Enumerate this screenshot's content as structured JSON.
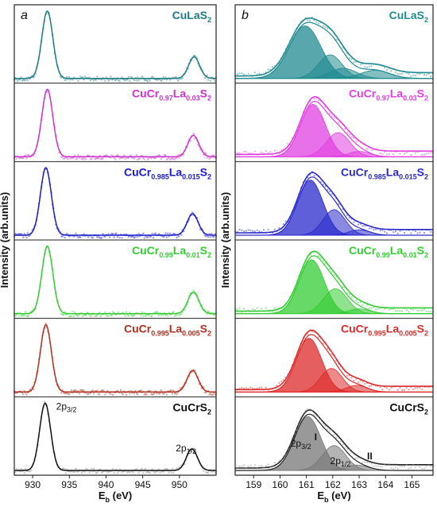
{
  "chart_data": [
    {
      "type": "line",
      "panel_letter": "a",
      "xlabel": "E",
      "xlabel_sub": "b",
      "xlabel_unit": " (eV)",
      "ylabel": "Intensity (arb.units)",
      "xlim": [
        927.5,
        955
      ],
      "xticks": [
        "930",
        "935",
        "940",
        "945",
        "950"
      ],
      "xtick_values": [
        930,
        935,
        940,
        945,
        950
      ],
      "series": [
        {
          "color": "#1f7a85",
          "compound": [
            "CuLaS",
            "2"
          ],
          "peaks": [
            {
              "center": 932.0,
              "sigma": 0.75,
              "height": 1.0
            },
            {
              "center": 952.0,
              "sigma": 0.75,
              "height": 0.32
            }
          ]
        },
        {
          "color": "#cc33cc",
          "compound": [
            "CuCr",
            "0.97",
            "La",
            "0.03",
            "S",
            "2"
          ],
          "peaks": [
            {
              "center": 932.0,
              "sigma": 0.75,
              "height": 1.0
            },
            {
              "center": 951.9,
              "sigma": 0.75,
              "height": 0.32
            }
          ]
        },
        {
          "color": "#1a1acc",
          "compound": [
            "CuCr",
            "0.985",
            "La",
            "0.015",
            "S",
            "2"
          ],
          "peaks": [
            {
              "center": 931.8,
              "sigma": 0.75,
              "height": 1.0
            },
            {
              "center": 951.8,
              "sigma": 0.75,
              "height": 0.32
            }
          ]
        },
        {
          "color": "#33cc33",
          "compound": [
            "CuCr",
            "0.99",
            "La",
            "0.01",
            "S",
            "2"
          ],
          "peaks": [
            {
              "center": 932.0,
              "sigma": 0.75,
              "height": 1.0
            },
            {
              "center": 951.9,
              "sigma": 0.75,
              "height": 0.32
            }
          ]
        },
        {
          "color": "#b03020",
          "compound": [
            "CuCr",
            "0.995",
            "La",
            "0.005",
            "S",
            "2"
          ],
          "peaks": [
            {
              "center": 931.8,
              "sigma": 0.75,
              "height": 1.0
            },
            {
              "center": 951.8,
              "sigma": 0.75,
              "height": 0.32
            }
          ]
        },
        {
          "color": "#111111",
          "compound": [
            "CuCrS",
            "2"
          ],
          "peaks": [
            {
              "center": 931.7,
              "sigma": 0.75,
              "height": 1.0
            },
            {
              "center": 951.7,
              "sigma": 0.75,
              "height": 0.32
            }
          ]
        }
      ],
      "annotations": [
        {
          "main": "2p",
          "sub": "3/2"
        },
        {
          "main": "2p",
          "sub": "1/2"
        }
      ]
    },
    {
      "type": "area",
      "panel_letter": "b",
      "xlabel": "E",
      "xlabel_sub": "b",
      "xlabel_unit": " (eV)",
      "ylabel": "Intensity (arb.units)",
      "xlim": [
        158.3,
        165.8
      ],
      "xticks": [
        "159",
        "160",
        "161",
        "162",
        "163",
        "164",
        "165"
      ],
      "xtick_values": [
        159,
        160,
        161,
        162,
        163,
        164,
        165
      ],
      "series": [
        {
          "color": "#1f8a90",
          "compound": [
            "CuLaS",
            "2"
          ],
          "components": [
            {
              "center": 160.95,
              "sigma": 0.6,
              "height": 0.78
            },
            {
              "center": 161.9,
              "sigma": 0.45,
              "height": 0.35
            },
            {
              "center": 162.4,
              "sigma": 0.5,
              "height": 0.15
            },
            {
              "center": 163.6,
              "sigma": 0.55,
              "height": 0.12
            }
          ]
        },
        {
          "color": "#e040e0",
          "compound": [
            "CuCr",
            "0.97",
            "La",
            "0.03",
            "S",
            "2"
          ],
          "components": [
            {
              "center": 161.25,
              "sigma": 0.48,
              "height": 0.78
            },
            {
              "center": 162.2,
              "sigma": 0.45,
              "height": 0.36
            },
            {
              "center": 163.0,
              "sigma": 0.4,
              "height": 0.08
            }
          ]
        },
        {
          "color": "#2a2acc",
          "compound": [
            "CuCr",
            "0.985",
            "La",
            "0.015",
            "S",
            "2"
          ],
          "components": [
            {
              "center": 161.15,
              "sigma": 0.48,
              "height": 0.82
            },
            {
              "center": 162.05,
              "sigma": 0.42,
              "height": 0.38
            },
            {
              "center": 163.0,
              "sigma": 0.4,
              "height": 0.08
            }
          ]
        },
        {
          "color": "#33cc33",
          "compound": [
            "CuCr",
            "0.99",
            "La",
            "0.01",
            "S",
            "2"
          ],
          "components": [
            {
              "center": 161.2,
              "sigma": 0.48,
              "height": 0.8
            },
            {
              "center": 162.1,
              "sigma": 0.45,
              "height": 0.37
            },
            {
              "center": 163.0,
              "sigma": 0.4,
              "height": 0.07
            }
          ]
        },
        {
          "color": "#dd2a2a",
          "compound": [
            "CuCr",
            "0.995",
            "La",
            "0.005",
            "S",
            "2"
          ],
          "components": [
            {
              "center": 161.1,
              "sigma": 0.48,
              "height": 0.8
            },
            {
              "center": 161.95,
              "sigma": 0.42,
              "height": 0.35
            },
            {
              "center": 162.9,
              "sigma": 0.4,
              "height": 0.1
            }
          ]
        },
        {
          "color": "#777777",
          "compound": [
            "CuCrS",
            "2"
          ],
          "components": [
            {
              "center": 161.05,
              "sigma": 0.5,
              "height": 0.8
            },
            {
              "center": 162.05,
              "sigma": 0.45,
              "height": 0.37
            },
            {
              "center": 162.9,
              "sigma": 0.45,
              "height": 0.08
            }
          ]
        }
      ],
      "annotations": [
        {
          "main": "2p",
          "sub": "3/2"
        },
        {
          "main": "2p",
          "sub": "1/2"
        },
        {
          "main": "I"
        },
        {
          "main": "II"
        }
      ]
    }
  ]
}
